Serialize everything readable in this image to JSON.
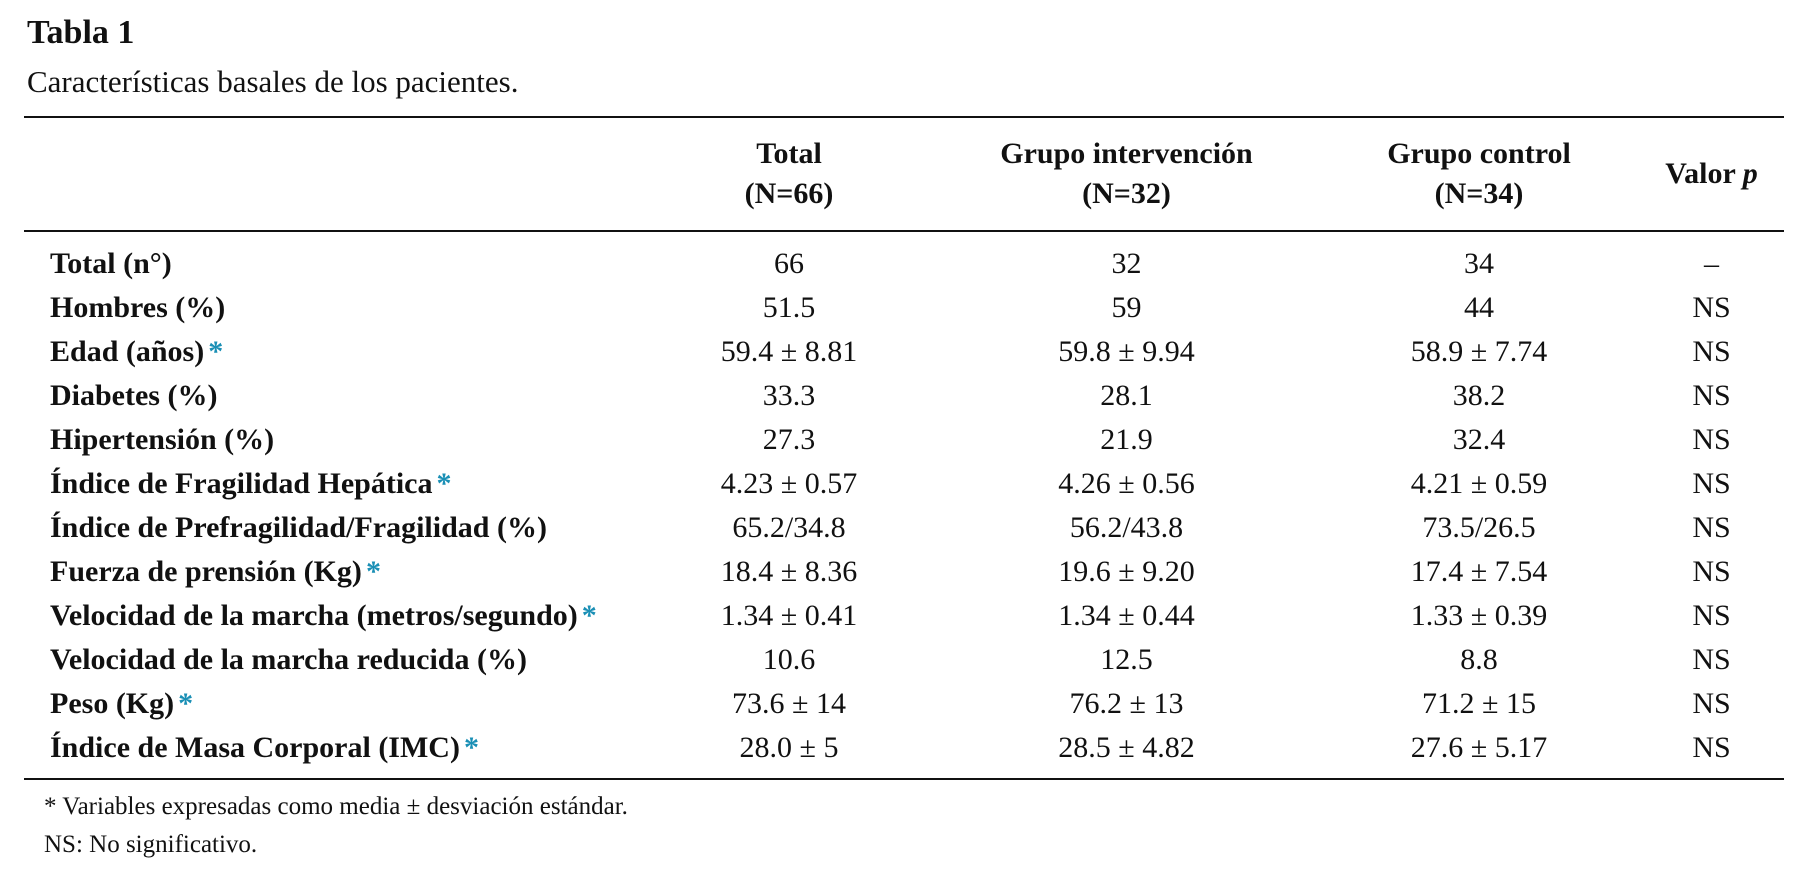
{
  "title": "Tabla 1",
  "caption": "Características basales de los pacientes.",
  "columns": [
    {
      "line1": "",
      "line2": ""
    },
    {
      "line1": "Total",
      "line2": "(N=66)"
    },
    {
      "line1": "Grupo intervención",
      "line2": "(N=32)"
    },
    {
      "line1": "Grupo control",
      "line2": "(N=34)"
    },
    {
      "line1": "Valor ",
      "line2": "p"
    }
  ],
  "rows": [
    {
      "label": "Total (n°)",
      "star": "",
      "values": [
        "66",
        "32",
        "34",
        "–"
      ]
    },
    {
      "label": "Hombres (%)",
      "star": "",
      "values": [
        "51.5",
        "59",
        "44",
        "NS"
      ]
    },
    {
      "label": "Edad (años)",
      "star": "*",
      "values": [
        "59.4 ± 8.81",
        "59.8 ± 9.94",
        "58.9 ± 7.74",
        "NS"
      ]
    },
    {
      "label": "Diabetes (%)",
      "star": "",
      "values": [
        "33.3",
        "28.1",
        "38.2",
        "NS"
      ]
    },
    {
      "label": "Hipertensión (%)",
      "star": "",
      "values": [
        "27.3",
        "21.9",
        "32.4",
        "NS"
      ]
    },
    {
      "label": "Índice de Fragilidad Hepática",
      "star": "*",
      "values": [
        "4.23 ± 0.57",
        "4.26 ± 0.56",
        "4.21 ± 0.59",
        "NS"
      ]
    },
    {
      "label": "Índice de Prefragilidad/Fragilidad (%)",
      "star": "",
      "values": [
        "65.2/34.8",
        "56.2/43.8",
        "73.5/26.5",
        "NS"
      ]
    },
    {
      "label": "Fuerza de prensión (Kg)",
      "star": "*",
      "values": [
        "18.4 ± 8.36",
        "19.6 ± 9.20",
        "17.4 ± 7.54",
        "NS"
      ]
    },
    {
      "label": "Velocidad de la marcha (metros/segundo)",
      "star": "*",
      "values": [
        "1.34 ± 0.41",
        "1.34 ± 0.44",
        "1.33 ± 0.39",
        "NS"
      ]
    },
    {
      "label": "Velocidad de la marcha reducida (%)",
      "star": "",
      "values": [
        "10.6",
        "12.5",
        "8.8",
        "NS"
      ]
    },
    {
      "label": "Peso (Kg)",
      "star": "*",
      "values": [
        "73.6 ± 14",
        "76.2 ± 13",
        "71.2 ± 15",
        "NS"
      ]
    },
    {
      "label": "Índice de Masa Corporal (IMC)",
      "star": "*",
      "values": [
        "28.0 ± 5",
        "28.5 ± 4.82",
        "27.6 ± 5.17",
        "NS"
      ]
    }
  ],
  "footnotes": [
    "* Variables expresadas como media ± desviación estándar.",
    "NS: No significativo."
  ],
  "colors": {
    "text": "#111111",
    "star": "#1a8fb5",
    "rule": "#111111"
  }
}
